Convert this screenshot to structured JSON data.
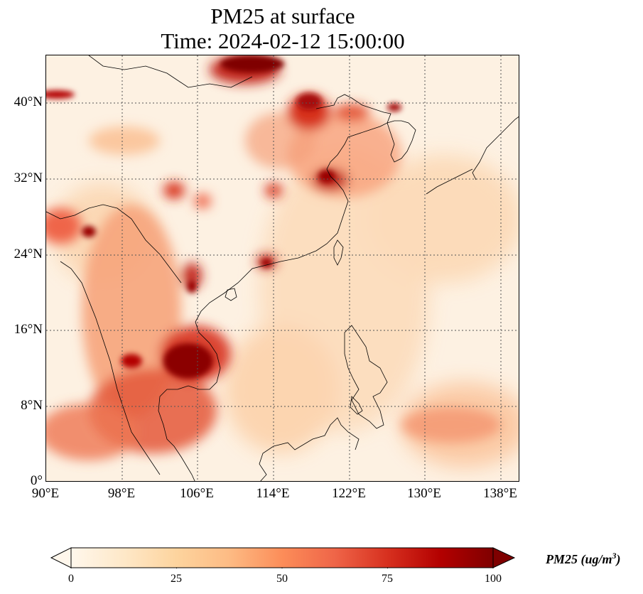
{
  "title": {
    "line1": "PM25 at surface",
    "line2": "Time: 2024-02-12 15:00:00"
  },
  "map": {
    "variable": "PM25",
    "lon_range": [
      90,
      140
    ],
    "lat_range": [
      0,
      45
    ],
    "lat_ticks": [
      "0°",
      "8°N",
      "16°N",
      "24°N",
      "32°N",
      "40°N"
    ],
    "lon_ticks": [
      "90°E",
      "98°E",
      "106°E",
      "114°E",
      "122°E",
      "130°E",
      "138°E"
    ],
    "gridlines": "dotted",
    "colormap": "OrRd",
    "colors": {
      "low": "#fff7ec",
      "mid_low": "#fdd49e",
      "mid": "#ef6548",
      "high": "#7f0000",
      "coastline": "#000000"
    }
  },
  "colorbar": {
    "label": "PM25 (ug/m³)",
    "label_base": "PM25 (ug/m",
    "label_sup": "3",
    "label_close": ")",
    "ticks": [
      "0",
      "25",
      "50",
      "75",
      "100"
    ],
    "range": [
      0,
      100
    ],
    "extend": "both"
  }
}
